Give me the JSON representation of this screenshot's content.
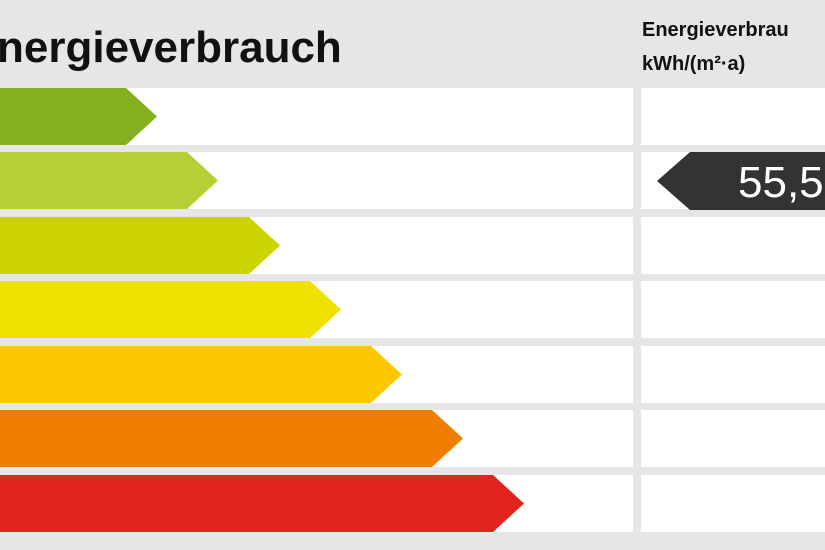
{
  "header": {
    "title": "nergieverbrauch",
    "column_title": "Energieverbrau",
    "column_unit": "kWh/(m²·a)"
  },
  "indicator": {
    "value": "55,5"
  }
}
